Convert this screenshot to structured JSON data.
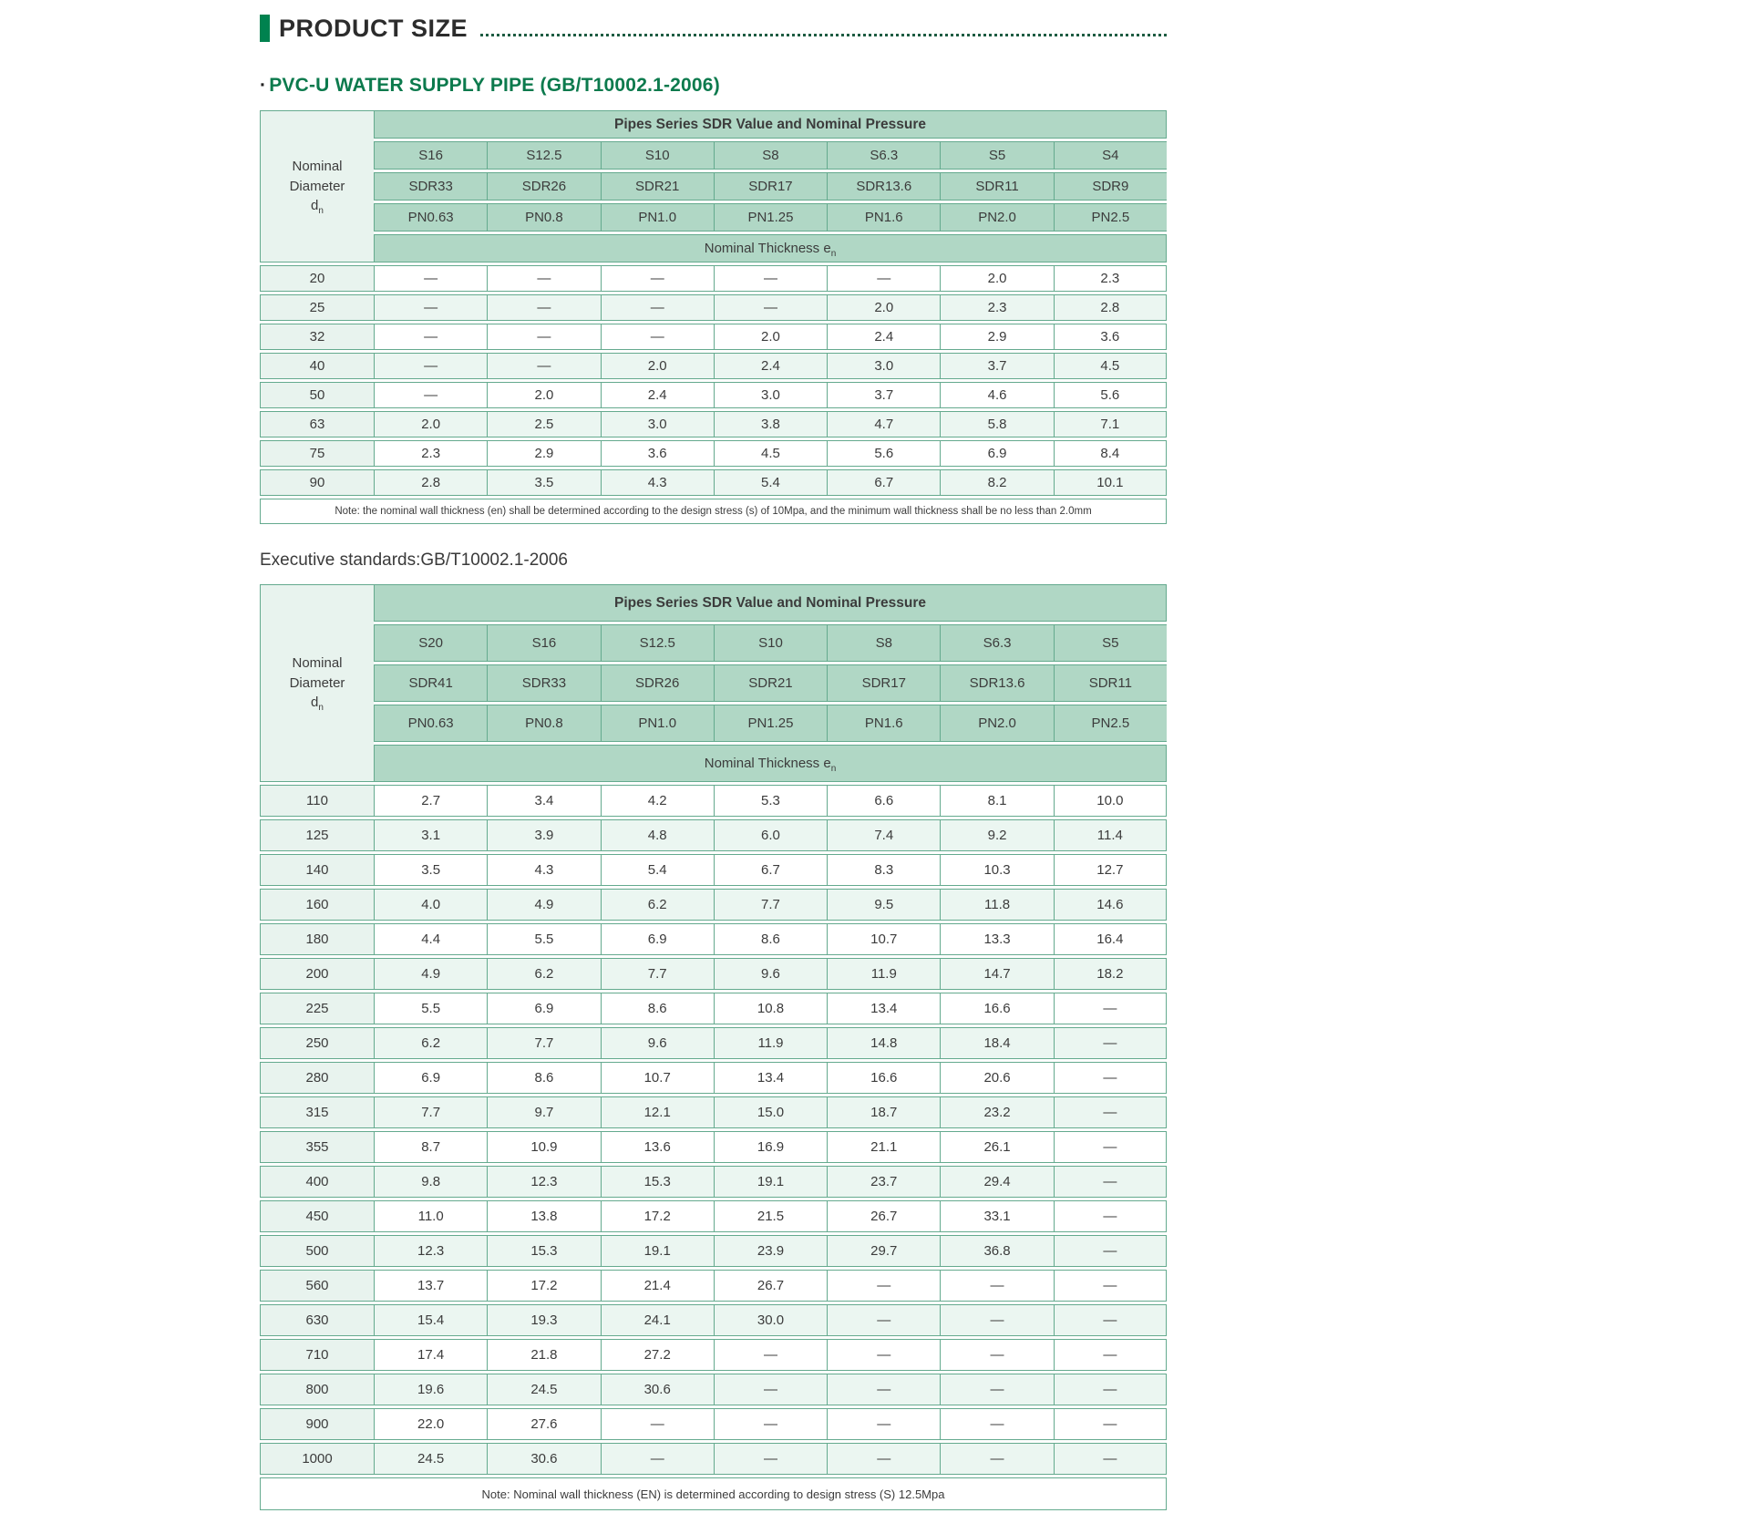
{
  "header": {
    "title": "PRODUCT SIZE",
    "subtitle_bullet": "·",
    "subtitle": "PVC-U WATER SUPPLY PIPE (GB/T10002.1-2006)"
  },
  "executive_standard": "Executive standards:GB/T10002.1-2006",
  "colors": {
    "accent_green": "#00824F",
    "subtitle_green": "#0C7A4D",
    "table_header_bg": "#B0D7C5",
    "left_column_bg": "#E8F3EE",
    "alt_row_bg": "#EBF6F1",
    "table_border": "#64AA8E"
  },
  "table1": {
    "corner_title": "Nominal Diameter",
    "corner_symbol": "d",
    "corner_symbol_sub": "n",
    "span_header": "Pipes Series SDR Value and Nominal Pressure",
    "thickness_label": "Nominal Thickness e",
    "thickness_sub": "n",
    "s_values": [
      "S16",
      "S12.5",
      "S10",
      "S8",
      "S6.3",
      "S5",
      "S4"
    ],
    "sdr_values": [
      "SDR33",
      "SDR26",
      "SDR21",
      "SDR17",
      "SDR13.6",
      "SDR11",
      "SDR9"
    ],
    "pn_values": [
      "PN0.63",
      "PN0.8",
      "PN1.0",
      "PN1.25",
      "PN1.6",
      "PN2.0",
      "PN2.5"
    ],
    "rows": [
      {
        "dn": "20",
        "values": [
          "—",
          "—",
          "—",
          "—",
          "—",
          "2.0",
          "2.3"
        ]
      },
      {
        "dn": "25",
        "values": [
          "—",
          "—",
          "—",
          "—",
          "2.0",
          "2.3",
          "2.8"
        ]
      },
      {
        "dn": "32",
        "values": [
          "—",
          "—",
          "—",
          "2.0",
          "2.4",
          "2.9",
          "3.6"
        ]
      },
      {
        "dn": "40",
        "values": [
          "—",
          "—",
          "2.0",
          "2.4",
          "3.0",
          "3.7",
          "4.5"
        ]
      },
      {
        "dn": "50",
        "values": [
          "—",
          "2.0",
          "2.4",
          "3.0",
          "3.7",
          "4.6",
          "5.6"
        ]
      },
      {
        "dn": "63",
        "values": [
          "2.0",
          "2.5",
          "3.0",
          "3.8",
          "4.7",
          "5.8",
          "7.1"
        ]
      },
      {
        "dn": "75",
        "values": [
          "2.3",
          "2.9",
          "3.6",
          "4.5",
          "5.6",
          "6.9",
          "8.4"
        ]
      },
      {
        "dn": "90",
        "values": [
          "2.8",
          "3.5",
          "4.3",
          "5.4",
          "6.7",
          "8.2",
          "10.1"
        ]
      }
    ],
    "note": "Note: the nominal wall thickness (en) shall be determined according to the design stress (s) of 10Mpa, and the minimum wall thickness shall be no less than 2.0mm"
  },
  "table2": {
    "corner_title": "Nominal Diameter",
    "corner_symbol": "d",
    "corner_symbol_sub": "n",
    "span_header": "Pipes Series SDR Value and Nominal Pressure",
    "thickness_label": "Nominal Thickness e",
    "thickness_sub": "n",
    "s_values": [
      "S20",
      "S16",
      "S12.5",
      "S10",
      "S8",
      "S6.3",
      "S5"
    ],
    "sdr_values": [
      "SDR41",
      "SDR33",
      "SDR26",
      "SDR21",
      "SDR17",
      "SDR13.6",
      "SDR11"
    ],
    "pn_values": [
      "PN0.63",
      "PN0.8",
      "PN1.0",
      "PN1.25",
      "PN1.6",
      "PN2.0",
      "PN2.5"
    ],
    "rows": [
      {
        "dn": "110",
        "values": [
          "2.7",
          "3.4",
          "4.2",
          "5.3",
          "6.6",
          "8.1",
          "10.0"
        ]
      },
      {
        "dn": "125",
        "values": [
          "3.1",
          "3.9",
          "4.8",
          "6.0",
          "7.4",
          "9.2",
          "11.4"
        ]
      },
      {
        "dn": "140",
        "values": [
          "3.5",
          "4.3",
          "5.4",
          "6.7",
          "8.3",
          "10.3",
          "12.7"
        ]
      },
      {
        "dn": "160",
        "values": [
          "4.0",
          "4.9",
          "6.2",
          "7.7",
          "9.5",
          "11.8",
          "14.6"
        ]
      },
      {
        "dn": "180",
        "values": [
          "4.4",
          "5.5",
          "6.9",
          "8.6",
          "10.7",
          "13.3",
          "16.4"
        ]
      },
      {
        "dn": "200",
        "values": [
          "4.9",
          "6.2",
          "7.7",
          "9.6",
          "11.9",
          "14.7",
          "18.2"
        ]
      },
      {
        "dn": "225",
        "values": [
          "5.5",
          "6.9",
          "8.6",
          "10.8",
          "13.4",
          "16.6",
          "—"
        ]
      },
      {
        "dn": "250",
        "values": [
          "6.2",
          "7.7",
          "9.6",
          "11.9",
          "14.8",
          "18.4",
          "—"
        ]
      },
      {
        "dn": "280",
        "values": [
          "6.9",
          "8.6",
          "10.7",
          "13.4",
          "16.6",
          "20.6",
          "—"
        ]
      },
      {
        "dn": "315",
        "values": [
          "7.7",
          "9.7",
          "12.1",
          "15.0",
          "18.7",
          "23.2",
          "—"
        ]
      },
      {
        "dn": "355",
        "values": [
          "8.7",
          "10.9",
          "13.6",
          "16.9",
          "21.1",
          "26.1",
          "—"
        ]
      },
      {
        "dn": "400",
        "values": [
          "9.8",
          "12.3",
          "15.3",
          "19.1",
          "23.7",
          "29.4",
          "—"
        ]
      },
      {
        "dn": "450",
        "values": [
          "11.0",
          "13.8",
          "17.2",
          "21.5",
          "26.7",
          "33.1",
          "—"
        ]
      },
      {
        "dn": "500",
        "values": [
          "12.3",
          "15.3",
          "19.1",
          "23.9",
          "29.7",
          "36.8",
          "—"
        ]
      },
      {
        "dn": "560",
        "values": [
          "13.7",
          "17.2",
          "21.4",
          "26.7",
          "—",
          "—",
          "—"
        ]
      },
      {
        "dn": "630",
        "values": [
          "15.4",
          "19.3",
          "24.1",
          "30.0",
          "—",
          "—",
          "—"
        ]
      },
      {
        "dn": "710",
        "values": [
          "17.4",
          "21.8",
          "27.2",
          "—",
          "—",
          "—",
          "—"
        ]
      },
      {
        "dn": "800",
        "values": [
          "19.6",
          "24.5",
          "30.6",
          "—",
          "—",
          "—",
          "—"
        ]
      },
      {
        "dn": "900",
        "values": [
          "22.0",
          "27.6",
          "—",
          "—",
          "—",
          "—",
          "—"
        ]
      },
      {
        "dn": "1000",
        "values": [
          "24.5",
          "30.6",
          "—",
          "—",
          "—",
          "—",
          "—"
        ]
      }
    ],
    "note": "Note: Nominal wall thickness (EN) is determined according to design stress (S) 12.5Mpa"
  }
}
